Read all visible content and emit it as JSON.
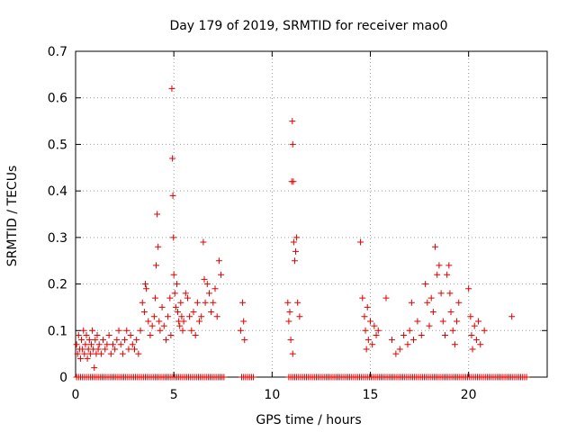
{
  "chart_data": {
    "type": "scatter",
    "title": "Day 179 of 2019, SRMTID for receiver mao0",
    "xlabel": "GPS time / hours",
    "ylabel": "SRMTID / TECUs",
    "xlim": [
      0,
      24
    ],
    "ylim": [
      0,
      0.7
    ],
    "xticks": [
      0,
      5,
      10,
      15,
      20
    ],
    "yticks": [
      0,
      0.1,
      0.2,
      0.3,
      0.4,
      0.5,
      0.6,
      0.7
    ],
    "ytick_labels": [
      "0",
      "0.1",
      "0.2",
      "0.3",
      "0.4",
      "0.5",
      "0.6",
      "0.7"
    ],
    "grid": true,
    "series": [
      {
        "name": "SRMTID",
        "color": "#dd0000",
        "marker": "plus",
        "points": [
          [
            0.05,
            0.07
          ],
          [
            0.1,
            0.05
          ],
          [
            0.15,
            0.09
          ],
          [
            0.2,
            0.06
          ],
          [
            0.25,
            0.04
          ],
          [
            0.3,
            0.08
          ],
          [
            0.35,
            0.06
          ],
          [
            0.4,
            0.1
          ],
          [
            0.45,
            0.05
          ],
          [
            0.5,
            0.07
          ],
          [
            0.55,
            0.09
          ],
          [
            0.6,
            0.04
          ],
          [
            0.65,
            0.06
          ],
          [
            0.7,
            0.08
          ],
          [
            0.75,
            0.05
          ],
          [
            0.8,
            0.07
          ],
          [
            0.85,
            0.1
          ],
          [
            0.9,
            0.06
          ],
          [
            0.95,
            0.02
          ],
          [
            1.0,
            0.08
          ],
          [
            1.05,
            0.05
          ],
          [
            1.1,
            0.09
          ],
          [
            1.15,
            0.06
          ],
          [
            1.2,
            0.07
          ],
          [
            1.3,
            0.05
          ],
          [
            1.4,
            0.08
          ],
          [
            1.5,
            0.06
          ],
          [
            1.6,
            0.07
          ],
          [
            1.7,
            0.09
          ],
          [
            1.8,
            0.05
          ],
          [
            1.9,
            0.07
          ],
          [
            2.0,
            0.06
          ],
          [
            2.1,
            0.08
          ],
          [
            2.2,
            0.1
          ],
          [
            2.3,
            0.07
          ],
          [
            2.4,
            0.05
          ],
          [
            2.5,
            0.08
          ],
          [
            2.6,
            0.1
          ],
          [
            2.7,
            0.06
          ],
          [
            2.8,
            0.09
          ],
          [
            2.9,
            0.07
          ],
          [
            3.0,
            0.06
          ],
          [
            3.1,
            0.08
          ],
          [
            3.2,
            0.05
          ],
          [
            3.3,
            0.1
          ],
          [
            3.4,
            0.16
          ],
          [
            3.5,
            0.14
          ],
          [
            3.55,
            0.2
          ],
          [
            3.6,
            0.19
          ],
          [
            3.7,
            0.12
          ],
          [
            3.8,
            0.09
          ],
          [
            3.9,
            0.11
          ],
          [
            4.0,
            0.13
          ],
          [
            4.05,
            0.17
          ],
          [
            4.1,
            0.24
          ],
          [
            4.15,
            0.35
          ],
          [
            4.2,
            0.28
          ],
          [
            4.25,
            0.12
          ],
          [
            4.3,
            0.1
          ],
          [
            4.4,
            0.15
          ],
          [
            4.5,
            0.11
          ],
          [
            4.6,
            0.08
          ],
          [
            4.7,
            0.13
          ],
          [
            4.8,
            0.17
          ],
          [
            4.85,
            0.09
          ],
          [
            4.9,
            0.62
          ],
          [
            4.93,
            0.47
          ],
          [
            4.95,
            0.39
          ],
          [
            4.98,
            0.3
          ],
          [
            5.0,
            0.22
          ],
          [
            5.05,
            0.18
          ],
          [
            5.1,
            0.15
          ],
          [
            5.15,
            0.2
          ],
          [
            5.2,
            0.14
          ],
          [
            5.25,
            0.12
          ],
          [
            5.3,
            0.11
          ],
          [
            5.35,
            0.16
          ],
          [
            5.4,
            0.13
          ],
          [
            5.45,
            0.1
          ],
          [
            5.5,
            0.12
          ],
          [
            5.6,
            0.18
          ],
          [
            5.7,
            0.17
          ],
          [
            5.8,
            0.13
          ],
          [
            5.9,
            0.1
          ],
          [
            6.0,
            0.14
          ],
          [
            6.1,
            0.09
          ],
          [
            6.2,
            0.16
          ],
          [
            6.3,
            0.12
          ],
          [
            6.4,
            0.13
          ],
          [
            6.5,
            0.29
          ],
          [
            6.55,
            0.21
          ],
          [
            6.6,
            0.16
          ],
          [
            6.7,
            0.2
          ],
          [
            6.8,
            0.18
          ],
          [
            6.9,
            0.14
          ],
          [
            7.0,
            0.16
          ],
          [
            7.1,
            0.19
          ],
          [
            7.2,
            0.13
          ],
          [
            7.3,
            0.25
          ],
          [
            7.4,
            0.22
          ],
          [
            8.4,
            0.1
          ],
          [
            8.5,
            0.16
          ],
          [
            8.55,
            0.12
          ],
          [
            8.6,
            0.08
          ],
          [
            10.8,
            0.16
          ],
          [
            10.85,
            0.12
          ],
          [
            10.9,
            0.14
          ],
          [
            10.95,
            0.08
          ],
          [
            11.0,
            0.42
          ],
          [
            11.03,
            0.55
          ],
          [
            11.05,
            0.5
          ],
          [
            11.08,
            0.42
          ],
          [
            11.1,
            0.29
          ],
          [
            11.15,
            0.25
          ],
          [
            11.2,
            0.27
          ],
          [
            11.25,
            0.3
          ],
          [
            11.3,
            0.16
          ],
          [
            11.4,
            0.13
          ],
          [
            11.05,
            0.05
          ],
          [
            14.5,
            0.29
          ],
          [
            14.6,
            0.17
          ],
          [
            14.7,
            0.13
          ],
          [
            14.75,
            0.1
          ],
          [
            14.8,
            0.06
          ],
          [
            14.85,
            0.15
          ],
          [
            14.9,
            0.08
          ],
          [
            15.0,
            0.12
          ],
          [
            15.1,
            0.07
          ],
          [
            15.2,
            0.11
          ],
          [
            15.3,
            0.09
          ],
          [
            15.4,
            0.1
          ],
          [
            15.8,
            0.17
          ],
          [
            16.1,
            0.08
          ],
          [
            16.3,
            0.05
          ],
          [
            16.5,
            0.06
          ],
          [
            16.7,
            0.09
          ],
          [
            16.9,
            0.07
          ],
          [
            17.0,
            0.1
          ],
          [
            17.1,
            0.16
          ],
          [
            17.2,
            0.08
          ],
          [
            17.4,
            0.12
          ],
          [
            17.6,
            0.09
          ],
          [
            17.8,
            0.2
          ],
          [
            17.9,
            0.16
          ],
          [
            18.0,
            0.11
          ],
          [
            18.1,
            0.17
          ],
          [
            18.2,
            0.14
          ],
          [
            18.3,
            0.28
          ],
          [
            18.4,
            0.22
          ],
          [
            18.5,
            0.24
          ],
          [
            18.6,
            0.18
          ],
          [
            18.7,
            0.12
          ],
          [
            18.8,
            0.09
          ],
          [
            18.9,
            0.22
          ],
          [
            19.0,
            0.24
          ],
          [
            19.05,
            0.18
          ],
          [
            19.1,
            0.14
          ],
          [
            19.2,
            0.1
          ],
          [
            19.3,
            0.07
          ],
          [
            19.4,
            0.12
          ],
          [
            19.5,
            0.16
          ],
          [
            20.0,
            0.19
          ],
          [
            20.1,
            0.13
          ],
          [
            20.15,
            0.09
          ],
          [
            20.2,
            0.06
          ],
          [
            20.3,
            0.11
          ],
          [
            20.4,
            0.08
          ],
          [
            20.5,
            0.12
          ],
          [
            20.6,
            0.07
          ],
          [
            20.8,
            0.1
          ],
          [
            22.2,
            0.13
          ]
        ]
      }
    ],
    "zero_points_x_start": 0.05,
    "zero_points_x_end": 22.95,
    "zero_points_x_step": 0.1,
    "zero_points_gaps": [
      [
        7.55,
        8.35
      ],
      [
        9.05,
        10.75
      ]
    ]
  }
}
